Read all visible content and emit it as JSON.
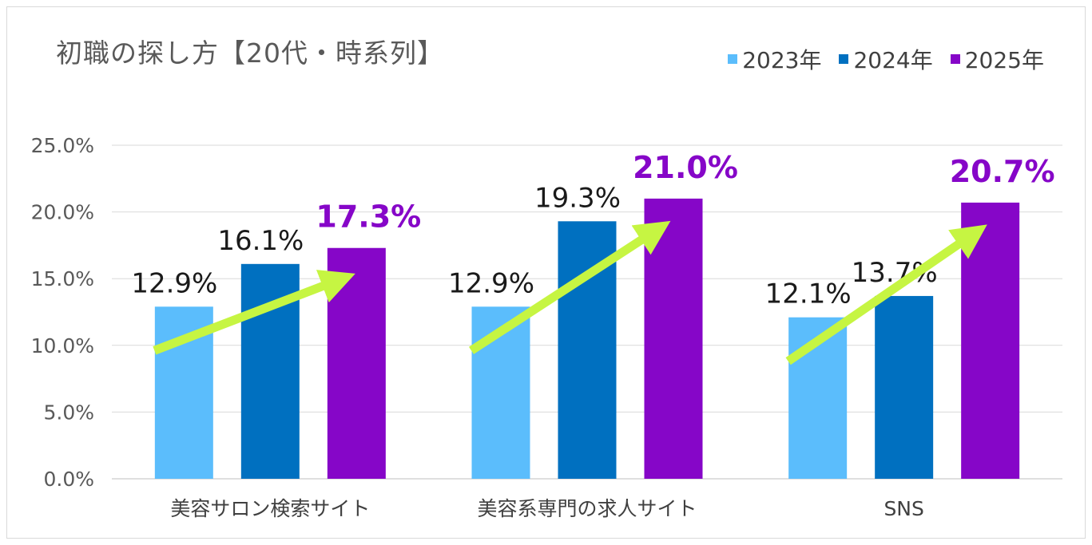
{
  "title": "初職の探し方【20代・時系列】",
  "chart_data": {
    "type": "bar",
    "categories": [
      "美容サロン検索サイト",
      "美容系専門の求人サイト",
      "SNS"
    ],
    "series": [
      {
        "name": "2023年",
        "color": "#5bbdfc",
        "values": [
          12.9,
          12.9,
          12.1
        ],
        "labels": [
          "12.9%",
          "12.9%",
          "12.1%"
        ]
      },
      {
        "name": "2024年",
        "color": "#0070c0",
        "values": [
          16.1,
          19.3,
          13.7
        ],
        "labels": [
          "16.1%",
          "19.3%",
          "13.7%"
        ]
      },
      {
        "name": "2025年",
        "color": "#8606c8",
        "values": [
          17.3,
          21.0,
          20.7
        ],
        "labels": [
          "17.3%",
          "21.0%",
          "20.7%"
        ]
      }
    ],
    "ylim": [
      0,
      25
    ],
    "yticks": [
      "0.0%",
      "5.0%",
      "10.0%",
      "15.0%",
      "20.0%",
      "25.0%"
    ],
    "ytick_values": [
      0,
      5,
      10,
      15,
      20,
      25
    ],
    "grid": true,
    "legend_position": "top-right",
    "annotation": "trend arrows (light green) rising from 2023年 to 2025年 in each group",
    "arrow_color": "#c6f542",
    "highlight_label_color": "#8606c8",
    "label_color": "#1a1a1a"
  }
}
